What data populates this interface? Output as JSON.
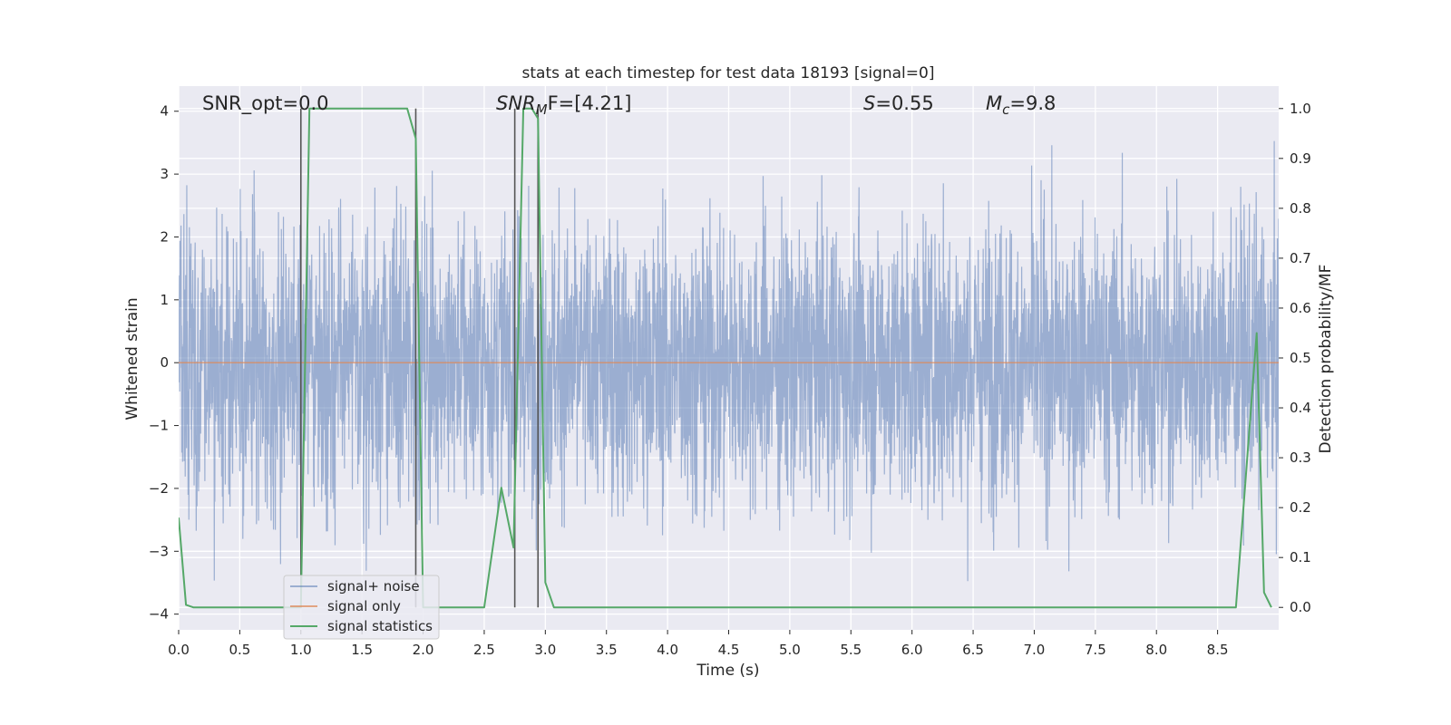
{
  "chart_data": {
    "type": "line",
    "title": "stats at each timestep for test data 18193 [signal=0]",
    "xlabel": "Time (s)",
    "ylabel": "Whitened strain",
    "ylabel_right": "Detection probability/MF",
    "xlim": [
      0.0,
      9.0
    ],
    "ylim": [
      -4.25,
      4.4
    ],
    "ylim_right": [
      -0.045,
      1.045
    ],
    "xticks": [
      "0.0",
      "0.5",
      "1.0",
      "1.5",
      "2.0",
      "2.5",
      "3.0",
      "3.5",
      "4.0",
      "4.5",
      "5.0",
      "5.5",
      "6.0",
      "6.5",
      "7.0",
      "7.5",
      "8.0",
      "8.5"
    ],
    "xtick_values": [
      0.0,
      0.5,
      1.0,
      1.5,
      2.0,
      2.5,
      3.0,
      3.5,
      4.0,
      4.5,
      5.0,
      5.5,
      6.0,
      6.5,
      7.0,
      7.5,
      8.0,
      8.5
    ],
    "yticks": [
      "4",
      "3",
      "2",
      "1",
      "0",
      "−1",
      "−2",
      "−3",
      "−4"
    ],
    "ytick_values": [
      4,
      3,
      2,
      1,
      0,
      -1,
      -2,
      -3,
      -4
    ],
    "yticks_right": [
      "1.0",
      "0.9",
      "0.8",
      "0.7",
      "0.6",
      "0.5",
      "0.4",
      "0.3",
      "0.2",
      "0.1",
      "0.0"
    ],
    "ytick_right_values": [
      1.0,
      0.9,
      0.8,
      0.7,
      0.6,
      0.5,
      0.4,
      0.3,
      0.2,
      0.1,
      0.0
    ],
    "grid": true,
    "legend_position": "lower-left",
    "annotations": {
      "snr_opt": "SNR_opt=0.0",
      "snr_mf_italic": "SNR",
      "snr_mf_sub": "M",
      "snr_mf_rest": "F=[4.21]",
      "s_italic": "S",
      "s_rest": "=0.55",
      "mc_italic": "M",
      "mc_sub": "c",
      "mc_rest": "=9.8"
    },
    "series": [
      {
        "name": "signal+ noise",
        "color": "#4c72b0",
        "style": "noise",
        "y_range": [
          -3.75,
          4.0
        ],
        "typical_std": 1.1
      },
      {
        "name": "signal only",
        "color": "#dd8452",
        "x": [
          0.0,
          9.0
        ],
        "y": [
          0.0,
          0.0
        ]
      },
      {
        "name": "signal statistics",
        "color": "#55a868",
        "axis": "right",
        "x": [
          0.0,
          0.06,
          0.12,
          0.98,
          1.0,
          1.07,
          1.87,
          1.94,
          2.0,
          2.5,
          2.64,
          2.74,
          2.82,
          2.89,
          2.94,
          3.0,
          3.07,
          8.65,
          8.82,
          8.88,
          8.94
        ],
        "y": [
          0.18,
          0.005,
          0.0,
          0.0,
          0.0,
          1.0,
          1.0,
          0.94,
          0.0,
          0.0,
          0.24,
          0.12,
          1.0,
          1.0,
          0.98,
          0.05,
          0.0,
          0.0,
          0.55,
          0.03,
          0.0
        ]
      }
    ],
    "vertical_markers": [
      1.0,
      1.94,
      2.75,
      2.94
    ]
  },
  "colors": {
    "plot_background": "#eaeaf2",
    "grid": "#ffffff",
    "marker_line": "#555555"
  }
}
